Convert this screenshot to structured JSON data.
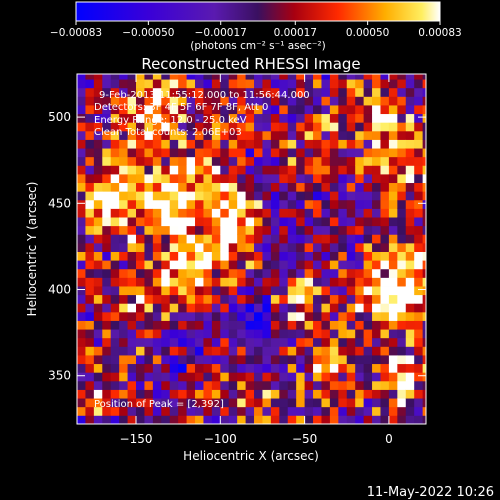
{
  "chart_data": {
    "type": "heatmap",
    "title": "Reconstructed RHESSI Image",
    "xlabel": "Heliocentric X (arcsec)",
    "ylabel": "Heliocentric Y (arcsec)",
    "xlim": [
      -185,
      22
    ],
    "ylim": [
      322,
      525
    ],
    "xticks": [
      -150,
      -100,
      -50,
      0
    ],
    "yticks": [
      350,
      400,
      450,
      500
    ],
    "colorbar": {
      "range": [
        -0.00083,
        0.00083
      ],
      "ticks": [
        -0.00083,
        -0.0005,
        -0.00017,
        0.00017,
        0.0005,
        0.00083
      ],
      "tick_labels": [
        "-0.00083",
        "-0.00050",
        "-0.00017",
        "0.00017",
        "0.00050",
        "0.00083"
      ],
      "units_text": "(photons cm⁻² s⁻¹ asec⁻²)"
    },
    "annotations": {
      "time_range": "9-Feb-2013 11:55:12.000 to 11:56:44.000",
      "detectors": "Detectors: 3F 4F 5F 6F 7F 8F, Att 0",
      "energy": "Energy Range: 12.0 - 25.0 keV",
      "clean": "Clean   Total counts: 2.06E+03",
      "peak": "Position of Peak = [2,392]"
    },
    "peak": {
      "x": 2,
      "y": 392
    },
    "sources": [
      {
        "x": -140,
        "y": 505,
        "sigma": 12,
        "amp": 0.0009
      },
      {
        "x": -155,
        "y": 465,
        "sigma": 12,
        "amp": 0.0008
      },
      {
        "x": -130,
        "y": 445,
        "sigma": 12,
        "amp": 0.0009
      },
      {
        "x": -115,
        "y": 470,
        "sigma": 12,
        "amp": 0.0007
      },
      {
        "x": -92,
        "y": 445,
        "sigma": 12,
        "amp": 0.0008
      },
      {
        "x": -98,
        "y": 420,
        "sigma": 12,
        "amp": 0.0006
      },
      {
        "x": -125,
        "y": 410,
        "sigma": 12,
        "amp": 0.0007
      },
      {
        "x": -150,
        "y": 395,
        "sigma": 12,
        "amp": 0.0005
      },
      {
        "x": -168,
        "y": 445,
        "sigma": 12,
        "amp": 0.0006
      },
      {
        "x": 2,
        "y": 392,
        "sigma": 12,
        "amp": 0.001
      },
      {
        "x": 10,
        "y": 415,
        "sigma": 12,
        "amp": 0.0007
      },
      {
        "x": 8,
        "y": 350,
        "sigma": 12,
        "amp": 0.0006
      },
      {
        "x": 8,
        "y": 470,
        "sigma": 12,
        "amp": 0.0006
      },
      {
        "x": -5,
        "y": 500,
        "sigma": 12,
        "amp": 0.0005
      },
      {
        "x": -55,
        "y": 395,
        "sigma": 12,
        "amp": 0.0005
      },
      {
        "x": -35,
        "y": 360,
        "sigma": 12,
        "amp": 0.0004
      },
      {
        "x": -170,
        "y": 345,
        "sigma": 12,
        "amp": 0.0004
      },
      {
        "x": -100,
        "y": 350,
        "sigma": 12,
        "amp": 0.0003
      },
      {
        "x": -70,
        "y": 330,
        "sigma": 12,
        "amp": 0.0004
      },
      {
        "x": -40,
        "y": 485,
        "sigma": 12,
        "amp": 0.0004
      },
      {
        "x": -80,
        "y": 380,
        "sigma": 12,
        "amp": -0.0006
      },
      {
        "x": -65,
        "y": 420,
        "sigma": 12,
        "amp": -0.0003
      },
      {
        "x": -120,
        "y": 360,
        "sigma": 12,
        "amp": -0.0003
      }
    ]
  },
  "footer": {
    "timestamp": "11-May-2022 10:26"
  }
}
